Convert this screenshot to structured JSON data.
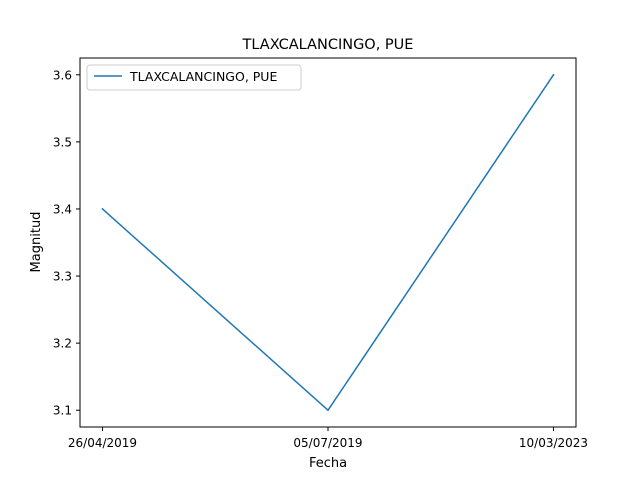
{
  "chart_data": {
    "type": "line",
    "title": "TLAXCALANCINGO, PUE",
    "xlabel": "Fecha",
    "ylabel": "Magnitud",
    "categories": [
      "26/04/2019",
      "05/07/2019",
      "10/03/2023"
    ],
    "series": [
      {
        "name": "TLAXCALANCINGO, PUE",
        "values": [
          3.4,
          3.1,
          3.6
        ],
        "color": "#1f77b4"
      }
    ],
    "ylim": [
      3.075,
      3.625
    ],
    "yticks": [
      "3.1",
      "3.2",
      "3.3",
      "3.4",
      "3.5",
      "3.6"
    ],
    "grid": false,
    "legend": "top-left"
  }
}
